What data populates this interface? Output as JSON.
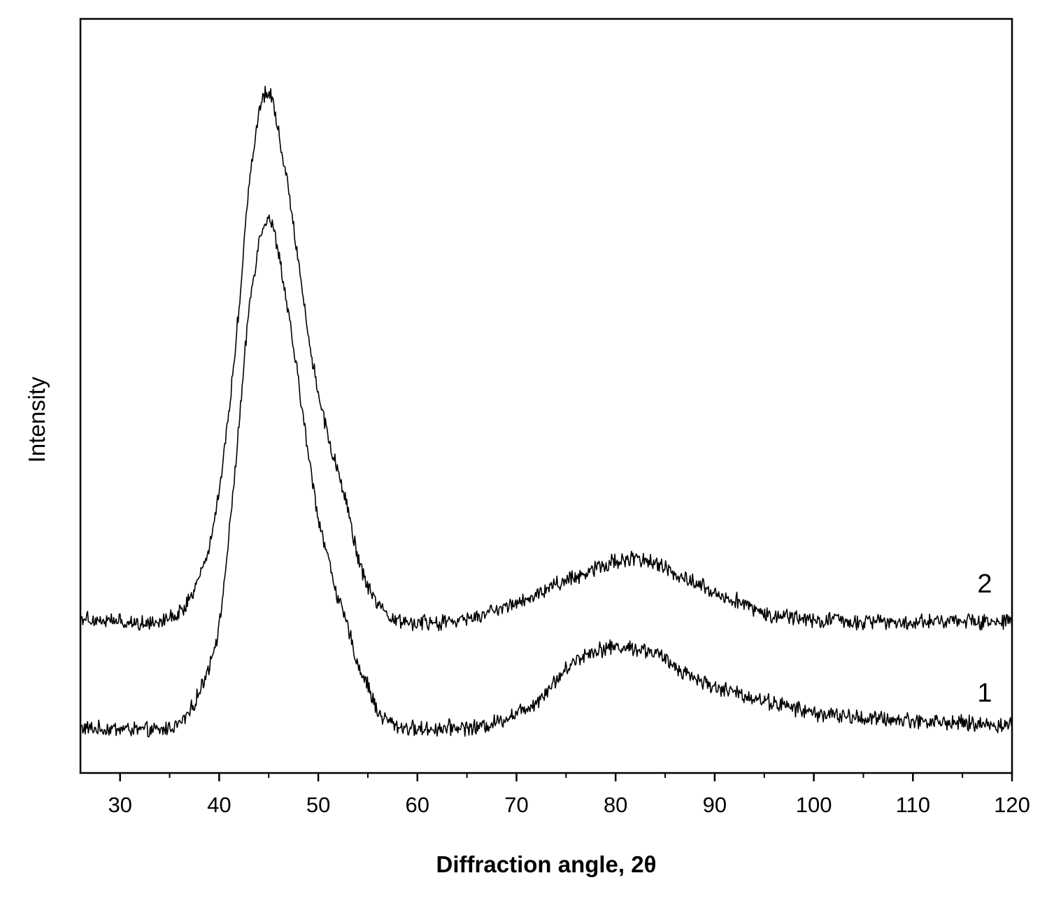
{
  "chart_data": {
    "type": "line",
    "xlabel": "Diffraction angle, 2θ",
    "ylabel": "Intensity",
    "xlim": [
      26,
      120
    ],
    "ylim": [
      0,
      100
    ],
    "x_ticks": [
      30,
      40,
      50,
      60,
      70,
      80,
      90,
      100,
      110,
      120
    ],
    "x_ticks_minor": [
      35,
      45,
      55,
      65,
      75,
      85,
      95,
      105,
      115
    ],
    "y_tick_labels": false,
    "grid": false,
    "legend": "none",
    "line_color": "#000000",
    "series": [
      {
        "name": "1",
        "x": [
          26,
          28,
          30,
          32,
          34,
          36,
          37,
          38,
          39,
          40,
          41,
          42,
          43,
          44,
          44.5,
          45,
          45.5,
          46,
          47,
          48,
          49,
          50,
          51,
          52,
          53,
          54,
          55,
          56,
          57,
          58,
          60,
          62,
          64,
          66,
          68,
          70,
          72,
          74,
          76,
          78,
          80,
          82,
          84,
          86,
          88,
          90,
          92,
          95,
          100,
          105,
          110,
          115,
          120
        ],
        "y": [
          5.0,
          4.8,
          4.9,
          4.7,
          4.6,
          5.5,
          7.0,
          9.8,
          13.5,
          18.5,
          31.0,
          46.0,
          62.0,
          71.0,
          73.5,
          74.5,
          72.5,
          69.5,
          61.0,
          52.0,
          42.0,
          33.5,
          28.0,
          22.5,
          18.5,
          13.5,
          10.8,
          7.0,
          6.0,
          5.2,
          4.8,
          4.9,
          5.1,
          5.0,
          5.8,
          7.0,
          8.5,
          11.5,
          14.3,
          15.6,
          16.0,
          15.8,
          15.2,
          13.3,
          11.8,
          10.5,
          9.8,
          8.7,
          7.0,
          6.3,
          6.0,
          5.6,
          5.3
        ]
      },
      {
        "name": "2",
        "x": [
          26,
          28,
          30,
          32,
          34,
          36,
          37,
          38,
          39,
          40,
          41,
          42,
          43,
          44,
          44.5,
          45,
          45.5,
          46,
          47,
          48,
          49,
          50,
          51,
          52,
          53,
          54,
          55,
          56,
          57,
          58,
          60,
          62,
          64,
          66,
          68,
          70,
          72,
          74,
          76,
          78,
          80,
          82,
          84,
          86,
          88,
          90,
          92,
          95,
          100,
          105,
          110,
          115,
          120
        ],
        "y": [
          20.0,
          19.6,
          19.4,
          19.2,
          19.6,
          20.5,
          22.5,
          25.5,
          29.5,
          37.0,
          48.0,
          62.0,
          79.0,
          88.5,
          91.0,
          91.5,
          89.5,
          86.0,
          78.0,
          68.5,
          58.0,
          50.5,
          44.5,
          39.5,
          34.5,
          28.0,
          24.0,
          21.5,
          20.0,
          19.5,
          19.2,
          19.2,
          19.5,
          20.0,
          21.0,
          22.0,
          23.0,
          24.5,
          25.5,
          26.8,
          27.6,
          28.0,
          27.3,
          26.0,
          24.8,
          23.3,
          22.4,
          20.5,
          19.6,
          19.4,
          19.4,
          19.6,
          19.3
        ]
      }
    ],
    "curve_labels": [
      "1",
      "2"
    ]
  }
}
